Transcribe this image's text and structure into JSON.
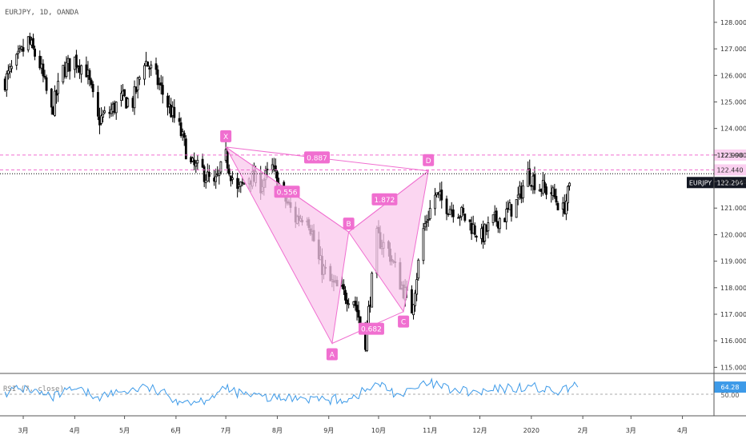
{
  "header": {
    "symbol_label": "EURJPY, 1D, OANDA"
  },
  "rsi_panel": {
    "label": "RSI (7, close)",
    "value": "64.28",
    "level_label": "50.00"
  },
  "colors": {
    "background": "#ffffff",
    "candles": "#000000",
    "pattern_fill": "#f9c8ec",
    "pattern_line": "#f06fd0",
    "pattern_label": "#f06fd0",
    "rsi_line": "#3d9ae8",
    "price_tag": "#131722",
    "axis_text": "#333333"
  },
  "chart_data": [
    {
      "type": "candlestick",
      "title": "EURJPY, 1D, OANDA",
      "x_tick_labels": [
        "3月",
        "4月",
        "5月",
        "6月",
        "7月",
        "8月",
        "9月",
        "10月",
        "11月",
        "12月",
        "2020",
        "2月",
        "3月",
        "4月"
      ],
      "y_tick_labels": [
        "115.000",
        "116.000",
        "117.000",
        "118.000",
        "119.000",
        "120.000",
        "121.000",
        "122.000",
        "123.000",
        "124.000",
        "125.000",
        "126.000",
        "127.000",
        "128.000"
      ],
      "ylim": [
        114.8,
        128.6
      ],
      "series": [
        {
          "name": "EURJPY",
          "close_path": [
            [
              "2019-02-18",
              125.8
            ],
            [
              "2019-02-25",
              126.5
            ],
            [
              "2019-03-04",
              127.3
            ],
            [
              "2019-03-11",
              126.4
            ],
            [
              "2019-03-18",
              124.6
            ],
            [
              "2019-03-25",
              126.2
            ],
            [
              "2019-04-01",
              126.6
            ],
            [
              "2019-04-08",
              126.2
            ],
            [
              "2019-04-15",
              124.3
            ],
            [
              "2019-04-22",
              124.6
            ],
            [
              "2019-04-29",
              125.1
            ],
            [
              "2019-05-06",
              125.0
            ],
            [
              "2019-05-13",
              126.6
            ],
            [
              "2019-05-20",
              125.9
            ],
            [
              "2019-05-27",
              124.9
            ],
            [
              "2019-06-03",
              124.0
            ],
            [
              "2019-06-10",
              122.6
            ],
            [
              "2019-06-17",
              122.4
            ],
            [
              "2019-06-24",
              121.8
            ],
            [
              "2019-07-01",
              122.9
            ],
            [
              "2019-07-08",
              121.6
            ],
            [
              "2019-07-15",
              122.2
            ],
            [
              "2019-07-22",
              121.9
            ],
            [
              "2019-07-29",
              122.5
            ],
            [
              "2019-08-05",
              121.4
            ],
            [
              "2019-08-12",
              120.6
            ],
            [
              "2019-08-19",
              120.8
            ],
            [
              "2019-08-26",
              119.0
            ],
            [
              "2019-09-02",
              118.2
            ],
            [
              "2019-09-09",
              117.8
            ],
            [
              "2019-09-16",
              117.6
            ],
            [
              "2019-09-23",
              116.0
            ],
            [
              "2019-09-30",
              119.9
            ],
            [
              "2019-10-07",
              119.4
            ],
            [
              "2019-10-14",
              118.2
            ],
            [
              "2019-10-21",
              117.2
            ],
            [
              "2019-10-28",
              120.2
            ],
            [
              "2019-11-04",
              121.5
            ],
            [
              "2019-11-11",
              121.1
            ],
            [
              "2019-11-18",
              120.9
            ],
            [
              "2019-11-25",
              120.4
            ],
            [
              "2019-12-02",
              119.9
            ],
            [
              "2019-12-09",
              120.5
            ],
            [
              "2019-12-16",
              120.7
            ],
            [
              "2019-12-23",
              121.2
            ],
            [
              "2019-12-30",
              122.3
            ],
            [
              "2020-01-06",
              121.8
            ],
            [
              "2020-01-13",
              121.6
            ],
            [
              "2020-01-20",
              120.9
            ],
            [
              "2020-01-27",
              122.3
            ]
          ]
        },
        {
          "name": "Harmonic pattern XABCD",
          "points": [
            {
              "label": "X",
              "date": "2019-07-01",
              "price": 123.3
            },
            {
              "label": "A",
              "date": "2019-09-03",
              "price": 115.9
            },
            {
              "label": "B",
              "date": "2019-09-13",
              "price": 120.1
            },
            {
              "label": "C",
              "date": "2019-10-16",
              "price": 117.1
            },
            {
              "label": "D",
              "date": "2019-10-31",
              "price": 122.4
            }
          ],
          "ratios": [
            {
              "label": "0.556",
              "between": [
                "X",
                "B"
              ]
            },
            {
              "label": "0.682",
              "between": [
                "A",
                "C"
              ]
            },
            {
              "label": "1.872",
              "between": [
                "B",
                "D"
              ]
            },
            {
              "label": "0.887",
              "between": [
                "X",
                "D"
              ]
            }
          ]
        }
      ],
      "horizontal_lines": [
        {
          "label": "122.998",
          "price": 122.998,
          "style": "dashed"
        },
        {
          "label": "122.440",
          "price": 122.44,
          "style": "dashed"
        },
        {
          "label": "EURJPY",
          "value_label": "122.294",
          "price": 122.294,
          "style": "dotted"
        }
      ],
      "grid": false
    },
    {
      "type": "line",
      "title": "RSI (7, close)",
      "ylim": [
        10,
        90
      ],
      "level": 50,
      "last_value": 64.28,
      "x": [
        "2019-02-18",
        "2019-03-04",
        "2019-03-18",
        "2019-04-01",
        "2019-04-15",
        "2019-05-01",
        "2019-05-15",
        "2019-06-01",
        "2019-06-15",
        "2019-07-01",
        "2019-07-15",
        "2019-08-01",
        "2019-08-15",
        "2019-09-01",
        "2019-09-15",
        "2019-10-01",
        "2019-10-15",
        "2019-11-01",
        "2019-11-15",
        "2019-12-01",
        "2019-12-15",
        "2020-01-01",
        "2020-01-15",
        "2020-01-29"
      ],
      "values": [
        55,
        62,
        42,
        60,
        45,
        56,
        64,
        40,
        35,
        60,
        48,
        40,
        45,
        38,
        42,
        70,
        48,
        72,
        58,
        52,
        60,
        66,
        52,
        64.28
      ]
    }
  ]
}
